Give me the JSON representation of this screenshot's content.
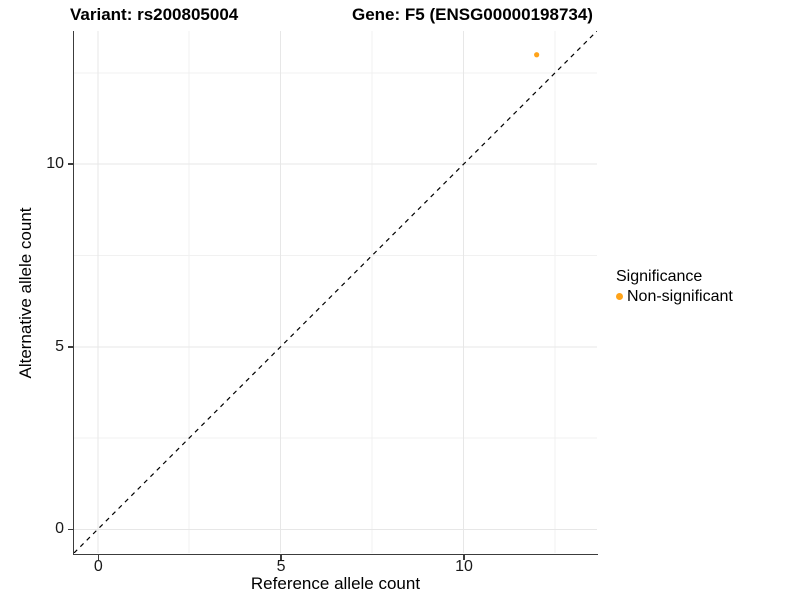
{
  "figure": {
    "title_left": "Variant: rs200805004",
    "title_right": "Gene: F5 (ENSG00000198734)"
  },
  "axes": {
    "x_label": "Reference allele count",
    "y_label": "Alternative allele count"
  },
  "legend": {
    "title": "Significance",
    "items": [
      {
        "label": "Non-significant",
        "color": "#FFA319"
      }
    ]
  },
  "chart_data": {
    "type": "scatter",
    "title": "Variant: rs200805004 — Gene: F5 (ENSG00000198734)",
    "xlabel": "Reference allele count",
    "ylabel": "Alternative allele count",
    "xlim": [
      -0.65,
      13.65
    ],
    "ylim": [
      -0.65,
      13.65
    ],
    "xticks": [
      0,
      5,
      10
    ],
    "yticks": [
      0,
      5,
      10
    ],
    "xminor": [
      2.5,
      7.5,
      12.5
    ],
    "yminor": [
      2.5,
      7.5,
      12.5
    ],
    "grid": "major+minor",
    "legend_position": "right",
    "series": [
      {
        "name": "Non-significant",
        "color": "#FFA319",
        "points": [
          {
            "x": 12,
            "y": 13
          }
        ]
      }
    ],
    "reference_line": {
      "kind": "identity y=x",
      "style": "dashed",
      "color": "#000000",
      "x1": -0.65,
      "y1": -0.65,
      "x2": 13.65,
      "y2": 13.65
    }
  },
  "colors": {
    "background": "#FFFFFF",
    "axis_line": "#3C3C3C",
    "grid_major": "#E7E7E7",
    "grid_minor": "#F1F1F1",
    "point": "#FFA319",
    "dashed_line": "#000000"
  }
}
